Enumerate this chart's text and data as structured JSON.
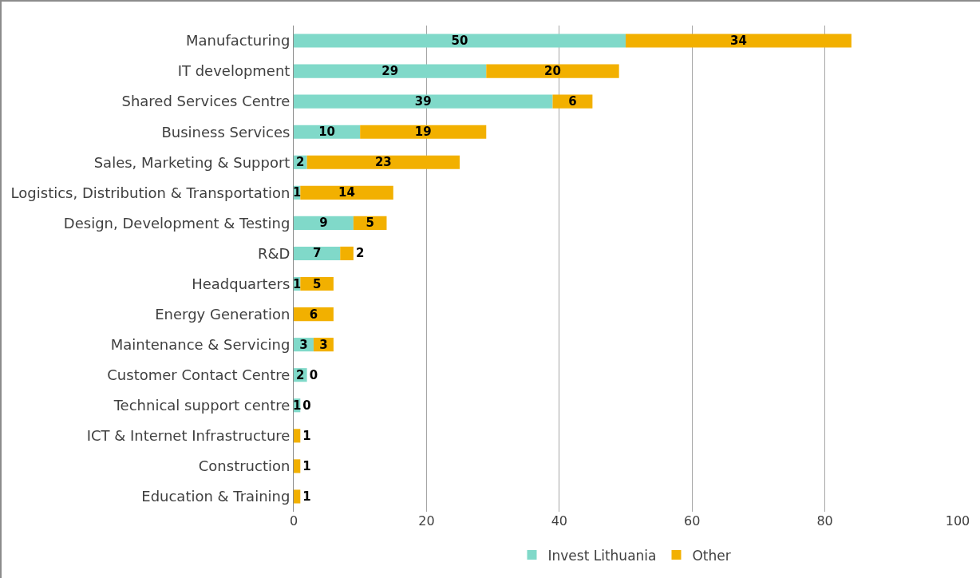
{
  "chart_data": {
    "type": "bar",
    "orientation": "horizontal",
    "stacked": true,
    "categories": [
      "Manufacturing",
      "IT development",
      "Shared Services Centre",
      "Business Services",
      "Sales, Marketing & Support",
      "Logistics, Distribution & Transportation",
      "Design, Development & Testing",
      "R&D",
      "Headquarters",
      "Energy Generation",
      "Maintenance & Servicing",
      "Customer Contact Centre",
      "Technical support centre",
      "ICT & Internet Infrastructure",
      "Construction",
      "Education & Training"
    ],
    "series": [
      {
        "name": "Invest Lithuania",
        "color": "#80d9c9",
        "values": [
          50,
          29,
          39,
          10,
          2,
          1,
          9,
          7,
          1,
          0,
          3,
          2,
          1,
          0,
          0,
          0
        ],
        "value_labels": [
          "50",
          "29",
          "39",
          "10",
          "2",
          "1",
          "9",
          "7",
          "1",
          null,
          "3",
          "2",
          "1",
          null,
          null,
          null
        ]
      },
      {
        "name": "Other",
        "color": "#f2b000",
        "values": [
          34,
          20,
          6,
          19,
          23,
          14,
          5,
          2,
          5,
          6,
          3,
          0,
          0,
          1,
          1,
          1
        ],
        "value_labels": [
          "34",
          "20",
          "6",
          "19",
          "23",
          "14",
          "5",
          "2",
          "5",
          "6",
          "3",
          "0",
          "0",
          "1",
          "1",
          "1"
        ]
      }
    ],
    "xlim": [
      0,
      100
    ],
    "xticks": [
      0,
      20,
      40,
      60,
      80,
      100
    ],
    "grid": "x",
    "legend": "bottom"
  }
}
